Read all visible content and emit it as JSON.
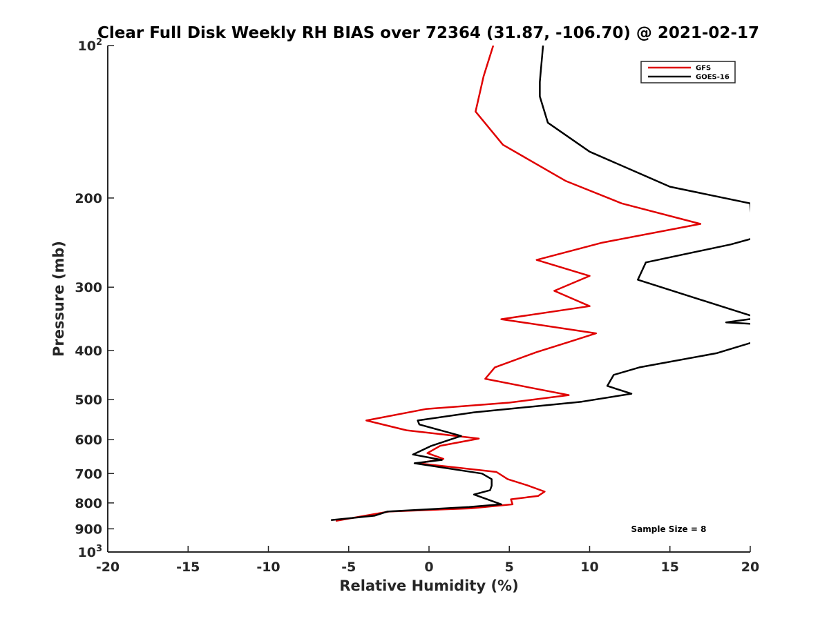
{
  "chart_data": {
    "type": "line",
    "title": "Clear Full Disk Weekly RH BIAS over 72364 (31.87, -106.70) @ 2021-02-17",
    "xlabel": "Relative Humidity (%)",
    "ylabel": "Pressure (mb)",
    "xlim": [
      -20,
      20
    ],
    "ylim": [
      100,
      1000
    ],
    "yscale": "log",
    "yreversed": true,
    "grid": false,
    "legend_position": "top-right",
    "x_ticks": [
      "-20",
      "-15",
      "-10",
      "-5",
      "0",
      "5",
      "10",
      "15",
      "20"
    ],
    "y_ticks": [
      {
        "value": 100,
        "base": "10",
        "exp": "2"
      },
      {
        "value": 200,
        "label": "200"
      },
      {
        "value": 300,
        "label": "300"
      },
      {
        "value": 400,
        "label": "400"
      },
      {
        "value": 500,
        "label": "500"
      },
      {
        "value": 600,
        "label": "600"
      },
      {
        "value": 700,
        "label": "700"
      },
      {
        "value": 800,
        "label": "800"
      },
      {
        "value": 900,
        "label": "900"
      },
      {
        "value": 1000,
        "base": "10",
        "exp": "3"
      }
    ],
    "annotation": "Sample Size = 8",
    "series": [
      {
        "name": "GFS",
        "color": "#e00000",
        "points": [
          [
            4.0,
            100
          ],
          [
            3.4,
            115
          ],
          [
            2.9,
            135
          ],
          [
            4.6,
            157
          ],
          [
            8.5,
            185
          ],
          [
            12.0,
            205
          ],
          [
            16.9,
            225
          ],
          [
            10.8,
            245
          ],
          [
            6.7,
            265
          ],
          [
            10.0,
            285
          ],
          [
            7.8,
            305
          ],
          [
            10.0,
            327
          ],
          [
            4.5,
            347
          ],
          [
            10.4,
            370
          ],
          [
            8.7,
            385
          ],
          [
            6.7,
            403
          ],
          [
            4.1,
            432
          ],
          [
            3.5,
            455
          ],
          [
            6.5,
            475
          ],
          [
            8.7,
            490
          ],
          [
            5.0,
            507
          ],
          [
            -0.2,
            522
          ],
          [
            -3.9,
            550
          ],
          [
            -1.4,
            575
          ],
          [
            3.1,
            597
          ],
          [
            0.7,
            617
          ],
          [
            -0.1,
            638
          ],
          [
            0.9,
            655
          ],
          [
            -0.7,
            668
          ],
          [
            4.2,
            695
          ],
          [
            4.9,
            718
          ],
          [
            6.1,
            738
          ],
          [
            7.2,
            760
          ],
          [
            6.8,
            775
          ],
          [
            5.1,
            787
          ],
          [
            5.2,
            805
          ],
          [
            2.6,
            820
          ],
          [
            -2.5,
            832
          ],
          [
            -5.8,
            868
          ]
        ]
      },
      {
        "name": "GOES-16",
        "color": "#000000",
        "points": [
          [
            7.1,
            100
          ],
          [
            6.9,
            118
          ],
          [
            6.9,
            126
          ],
          [
            7.4,
            142
          ],
          [
            10.0,
            162
          ],
          [
            15.0,
            190
          ],
          [
            20.0,
            205
          ],
          [
            20.2,
            240
          ],
          [
            18.8,
            247
          ],
          [
            13.5,
            268
          ],
          [
            13.0,
            290
          ],
          [
            17.9,
            325
          ],
          [
            20.5,
            345
          ],
          [
            18.5,
            352
          ],
          [
            20.5,
            355
          ],
          [
            20.2,
            385
          ],
          [
            17.9,
            405
          ],
          [
            13.1,
            432
          ],
          [
            11.5,
            447
          ],
          [
            11.1,
            470
          ],
          [
            12.6,
            487
          ],
          [
            9.5,
            505
          ],
          [
            2.8,
            530
          ],
          [
            -0.7,
            550
          ],
          [
            -0.6,
            560
          ],
          [
            2.0,
            590
          ],
          [
            0.1,
            618
          ],
          [
            -1.0,
            642
          ],
          [
            0.8,
            658
          ],
          [
            -0.9,
            668
          ],
          [
            3.3,
            700
          ],
          [
            3.9,
            718
          ],
          [
            3.9,
            740
          ],
          [
            3.8,
            755
          ],
          [
            2.8,
            770
          ],
          [
            4.5,
            805
          ],
          [
            2.5,
            815
          ],
          [
            -2.6,
            832
          ],
          [
            -3.4,
            848
          ],
          [
            -6.1,
            865
          ]
        ]
      }
    ]
  }
}
